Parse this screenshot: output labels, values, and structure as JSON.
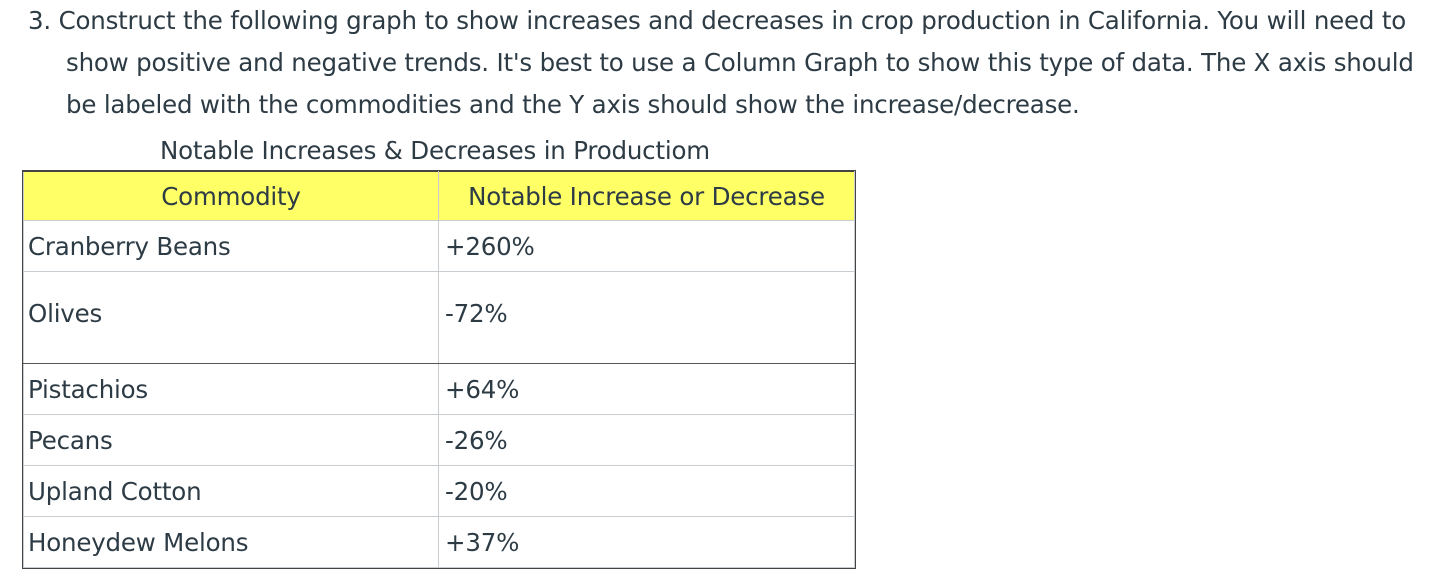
{
  "question": {
    "lines": [
      "3. Construct the following graph to show increases and decreases in crop production in California. You will need to",
      "show positive and negative trends. It's best to use a Column Graph to show this type of data. The X axis should",
      "be labeled with the commodities and the Y axis should show the increase/decrease."
    ]
  },
  "table": {
    "caption": "Notable Increases & Decreases in Productiom",
    "header_color": "#ffff66",
    "columns": [
      "Commodity",
      "Notable Increase or Decrease"
    ],
    "rows": [
      {
        "commodity": "Cranberry Beans",
        "change": "+260%"
      },
      {
        "commodity": "Olives",
        "change": "-72%"
      },
      {
        "commodity": "Pistachios",
        "change": "+64%"
      },
      {
        "commodity": "Pecans",
        "change": "-26%"
      },
      {
        "commodity": "Upland Cotton",
        "change": "-20%"
      },
      {
        "commodity": "Honeydew Melons",
        "change": "+37%"
      }
    ]
  }
}
